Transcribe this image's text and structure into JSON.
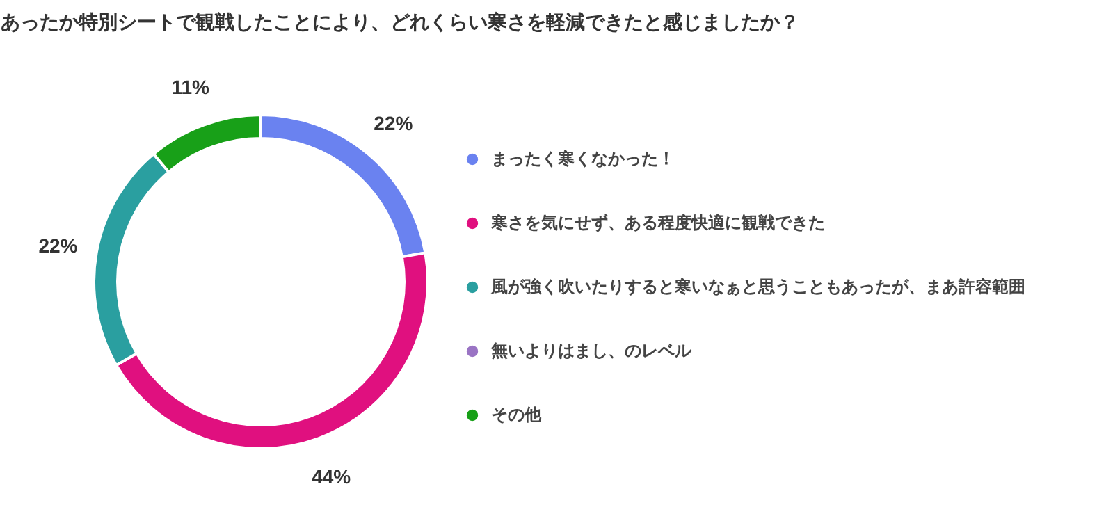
{
  "chart_data": {
    "type": "donut",
    "title": "あったか特別シートで観戦したことにより、どれくらい寒さを軽減できたと感じましたか？",
    "categories": [
      "まったく寒くなかった！",
      "寒さを気にせず、ある程度快適に観戦できた",
      "風が強く吹いたりすると寒いなぁと思うこともあったが、まあ許容範囲",
      "無いよりはまし、のレベル",
      "その他"
    ],
    "values": [
      22,
      44,
      22,
      0,
      11
    ],
    "value_labels": [
      "22%",
      "44%",
      "22%",
      null,
      "11%"
    ],
    "colors": [
      "#6a82f0",
      "#e0107f",
      "#2a9fa0",
      "#9a74c4",
      "#18a018"
    ],
    "legend": "right"
  }
}
